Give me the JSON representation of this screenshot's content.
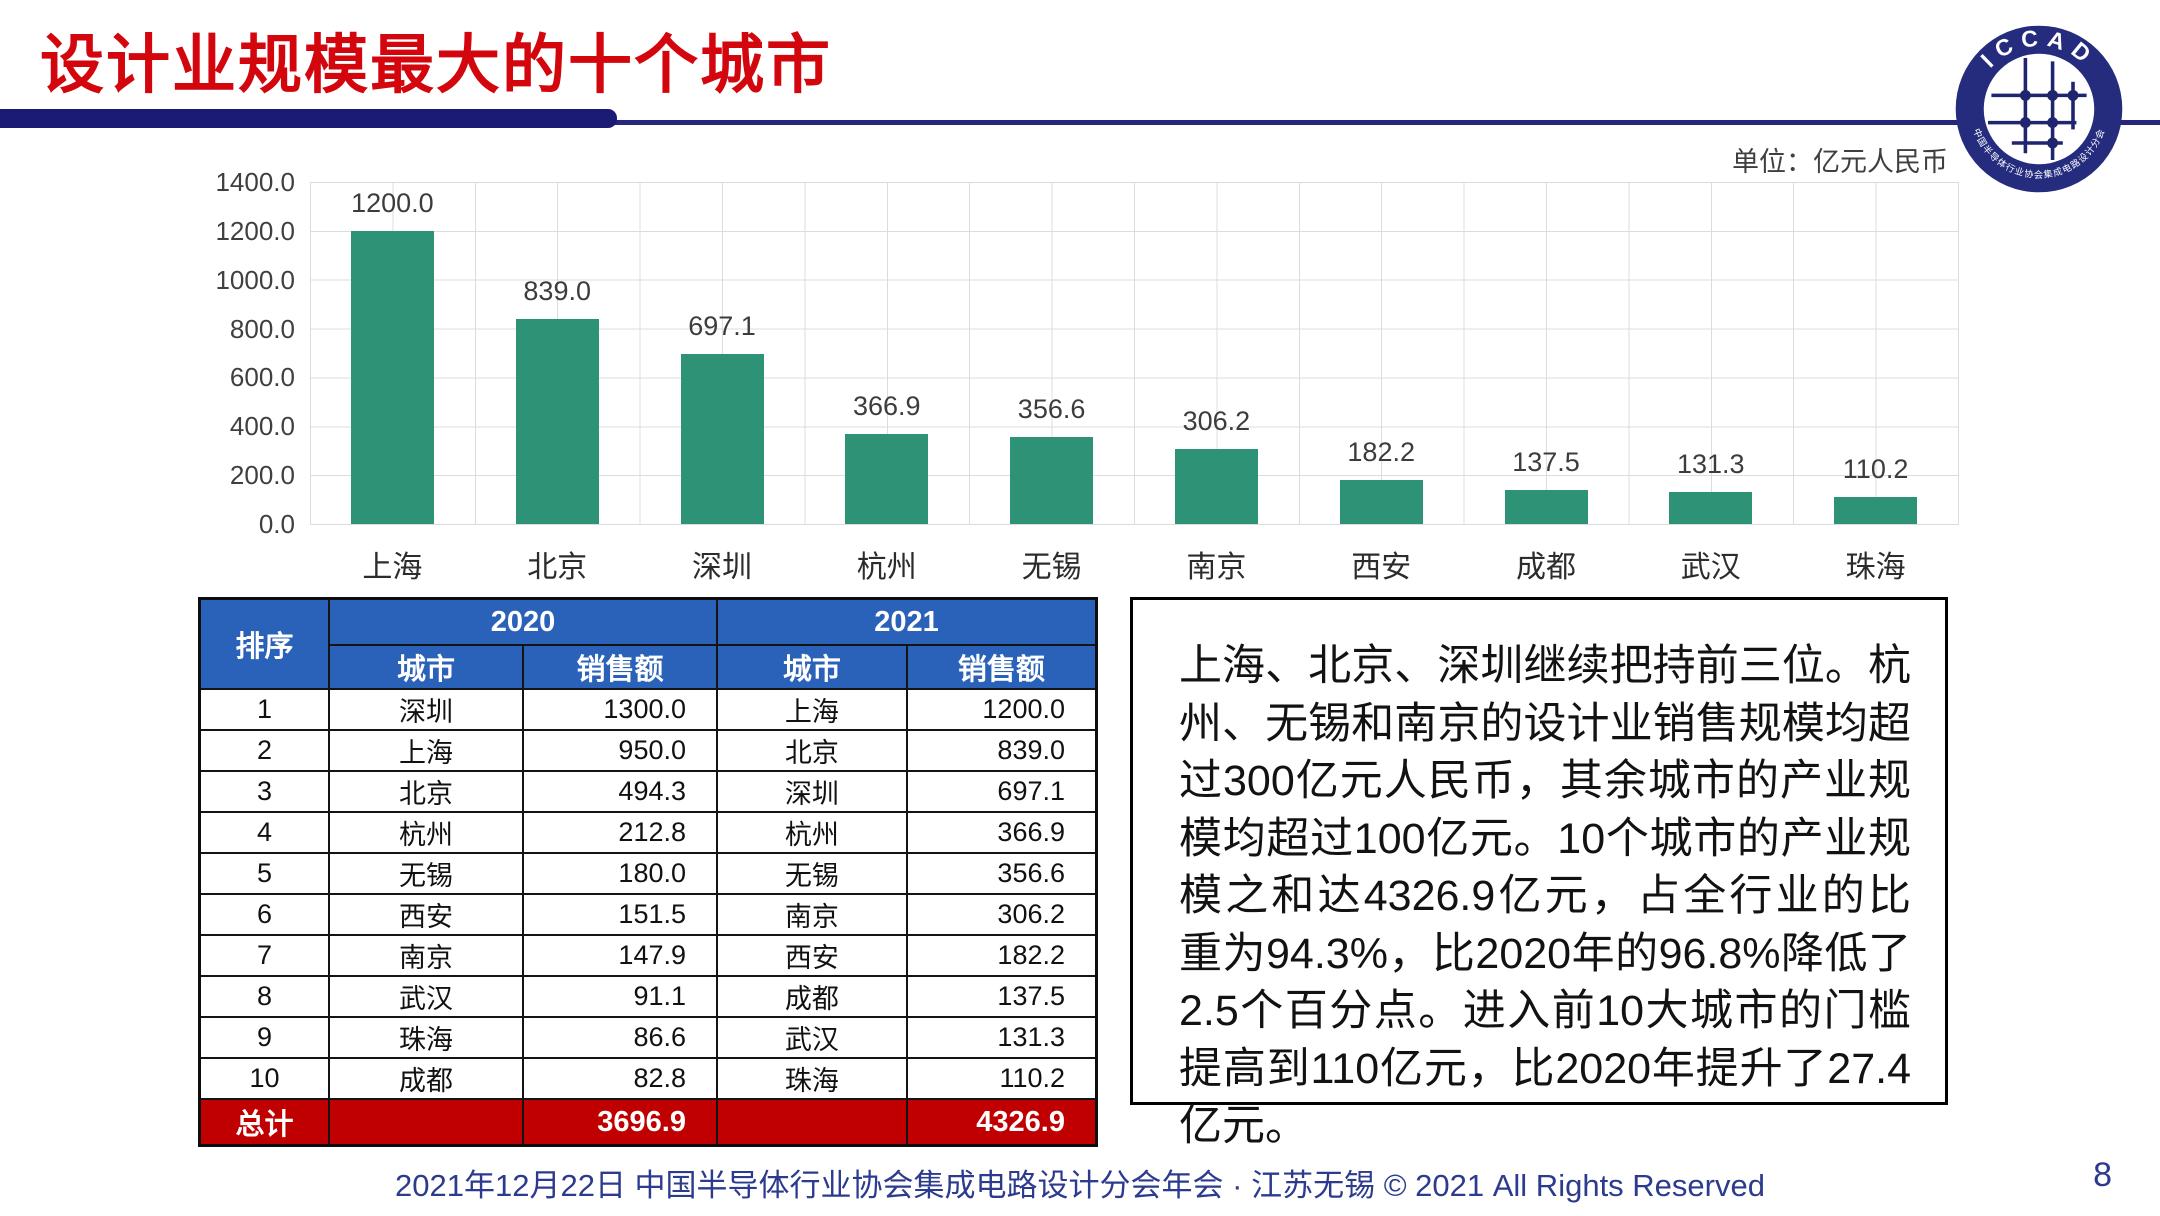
{
  "slide": {
    "title": "设计业规模最大的十个城市",
    "unit_label": "单位：亿元人民币",
    "footer": "2021年12月22日 中国半导体行业协会集成电路设计分会年会 · 江苏无锡 © 2021 All Rights Reserved",
    "page_number": "8"
  },
  "logo": {
    "top_text": "ICCAD",
    "bottom_text": "中国半导体行业协会集成电路设计分会"
  },
  "chart_data": {
    "type": "bar",
    "title": "",
    "xlabel": "",
    "ylabel": "",
    "unit": "亿元人民币",
    "categories": [
      "上海",
      "北京",
      "深圳",
      "杭州",
      "无锡",
      "南京",
      "西安",
      "成都",
      "武汉",
      "珠海"
    ],
    "values": [
      1200.0,
      839.0,
      697.1,
      366.9,
      356.6,
      306.2,
      182.2,
      137.5,
      131.3,
      110.2
    ],
    "value_labels": [
      "1200.0",
      "839.0",
      "697.1",
      "366.9",
      "356.6",
      "306.2",
      "182.2",
      "137.5",
      "131.3",
      "110.2"
    ],
    "ylim": [
      0,
      1400
    ],
    "ytick_interval": 200,
    "yticks": [
      "1400.0",
      "1200.0",
      "1000.0",
      "800.0",
      "600.0",
      "400.0",
      "200.0",
      "0.0"
    ],
    "grid": "horizontal every 200, vertical every half category",
    "legend_position": "none",
    "bar_color": "#2e9277"
  },
  "table": {
    "header": {
      "rank": "排序",
      "y2020": "2020",
      "y2021": "2021",
      "city": "城市",
      "sales": "销售额"
    },
    "rows": [
      {
        "rank": "1",
        "city_2020": "深圳",
        "sales_2020": "1300.0",
        "city_2021": "上海",
        "sales_2021": "1200.0"
      },
      {
        "rank": "2",
        "city_2020": "上海",
        "sales_2020": "950.0",
        "city_2021": "北京",
        "sales_2021": "839.0"
      },
      {
        "rank": "3",
        "city_2020": "北京",
        "sales_2020": "494.3",
        "city_2021": "深圳",
        "sales_2021": "697.1"
      },
      {
        "rank": "4",
        "city_2020": "杭州",
        "sales_2020": "212.8",
        "city_2021": "杭州",
        "sales_2021": "366.9"
      },
      {
        "rank": "5",
        "city_2020": "无锡",
        "sales_2020": "180.0",
        "city_2021": "无锡",
        "sales_2021": "356.6"
      },
      {
        "rank": "6",
        "city_2020": "西安",
        "sales_2020": "151.5",
        "city_2021": "南京",
        "sales_2021": "306.2"
      },
      {
        "rank": "7",
        "city_2020": "南京",
        "sales_2020": "147.9",
        "city_2021": "西安",
        "sales_2021": "182.2"
      },
      {
        "rank": "8",
        "city_2020": "武汉",
        "sales_2020": "91.1",
        "city_2021": "成都",
        "sales_2021": "137.5"
      },
      {
        "rank": "9",
        "city_2020": "珠海",
        "sales_2020": "86.6",
        "city_2021": "武汉",
        "sales_2021": "131.3"
      },
      {
        "rank": "10",
        "city_2020": "成都",
        "sales_2020": "82.8",
        "city_2021": "珠海",
        "sales_2021": "110.2"
      }
    ],
    "total": {
      "label": "总计",
      "sales_2020": "3696.9",
      "sales_2021": "4326.9"
    },
    "header_bg": "#2b62b9",
    "total_bg": "#c00000"
  },
  "commentary": {
    "text": "上海、北京、深圳继续把持前三位。杭州、无锡和南京的设计业销售规模均超过300亿元人民币，其余城市的产业规模均超过100亿元。10个城市的产业规模之和达4326.9亿元，占全行业的比重为94.3%，比2020年的96.8%降低了2.5个百分点。进入前10大城市的门槛提高到110亿元，比2020年提升了27.4亿元。"
  },
  "colors": {
    "title_red": "#d3060e",
    "divider_navy": "#1b1b76",
    "bar_teal": "#2e9277",
    "table_header_blue": "#2b62b9",
    "total_row_red": "#c00000",
    "footer_navy": "#2c3b8e",
    "gridline_gray": "#dcdcdc"
  }
}
